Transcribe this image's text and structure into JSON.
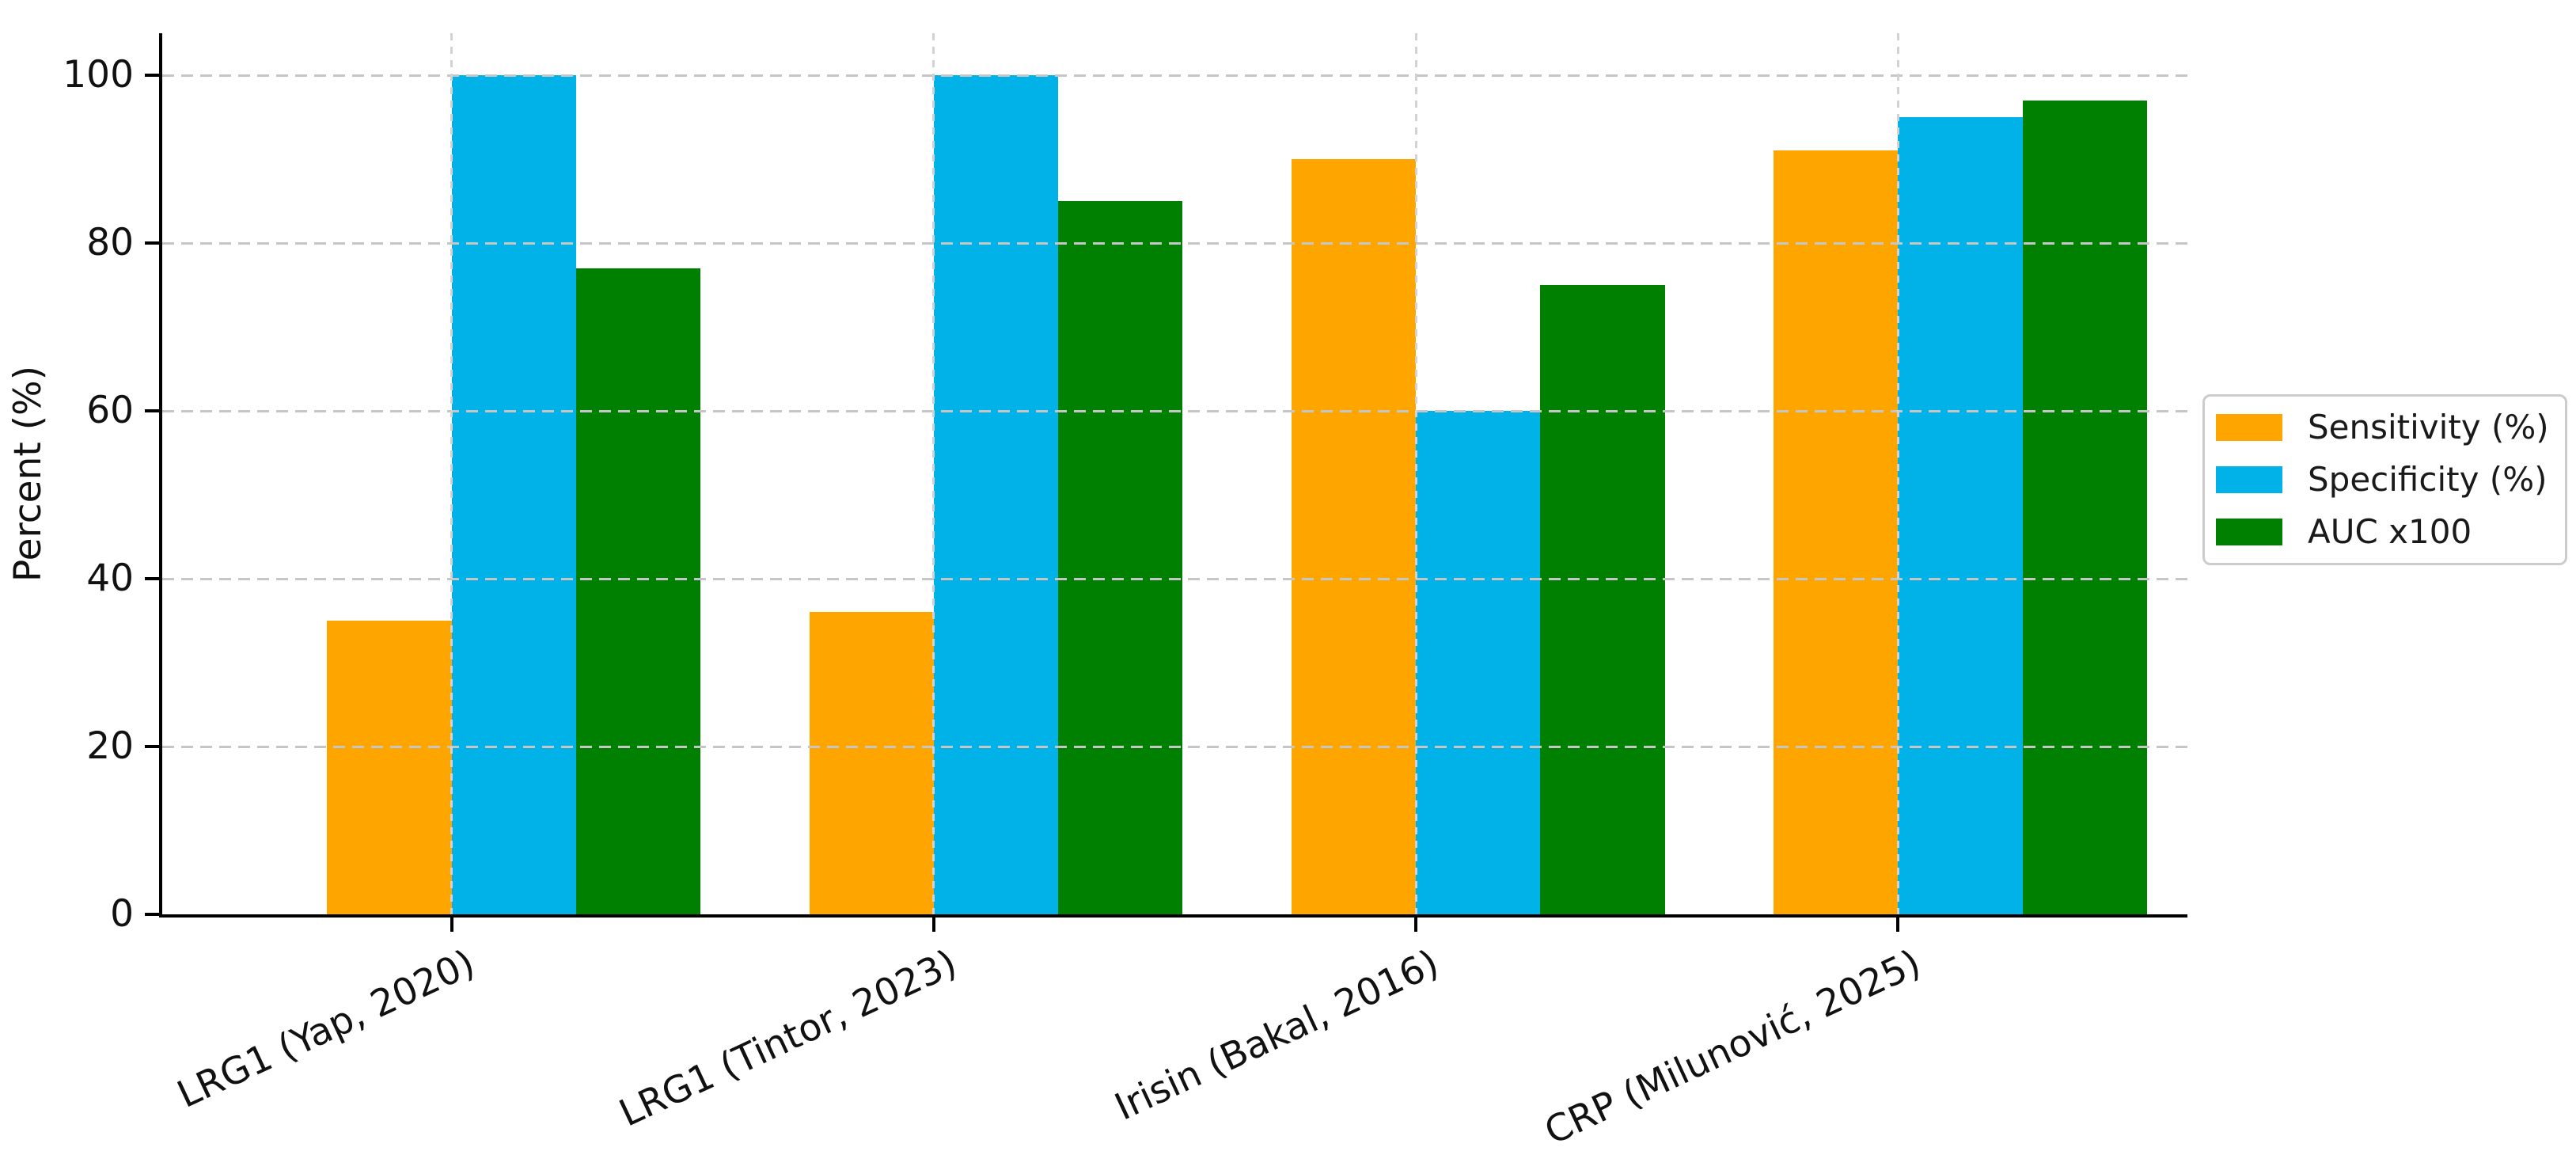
{
  "figure": {
    "background": "#ffffff",
    "text_color": "#1a1a1a"
  },
  "chart_data": {
    "type": "bar",
    "title": "",
    "xlabel": "",
    "ylabel": "Percent (%)",
    "categories": [
      "LRG1 (Yap, 2020)",
      "LRG1 (Tintor, 2023)",
      "Irisin (Bakal, 2016)",
      "CRP (Milunović, 2025)"
    ],
    "series": [
      {
        "name": "Sensitivity (%)",
        "color": "#FFA500",
        "values": [
          35,
          36,
          90,
          91
        ]
      },
      {
        "name": "Specificity (%)",
        "color": "#00B2E8",
        "values": [
          100,
          100,
          60,
          95
        ]
      },
      {
        "name": "AUC x100",
        "color": "#008000",
        "values": [
          77,
          85,
          75,
          97
        ]
      }
    ],
    "yticks": [
      0,
      20,
      40,
      60,
      80,
      100
    ],
    "ylim": [
      0,
      105
    ],
    "grid": true,
    "grid_style": "dashed",
    "grid_above_bars": true,
    "legend": {
      "position": "right-outside-center",
      "entries": [
        "Sensitivity (%)",
        "Specificity (%)",
        "AUC x100"
      ]
    }
  }
}
